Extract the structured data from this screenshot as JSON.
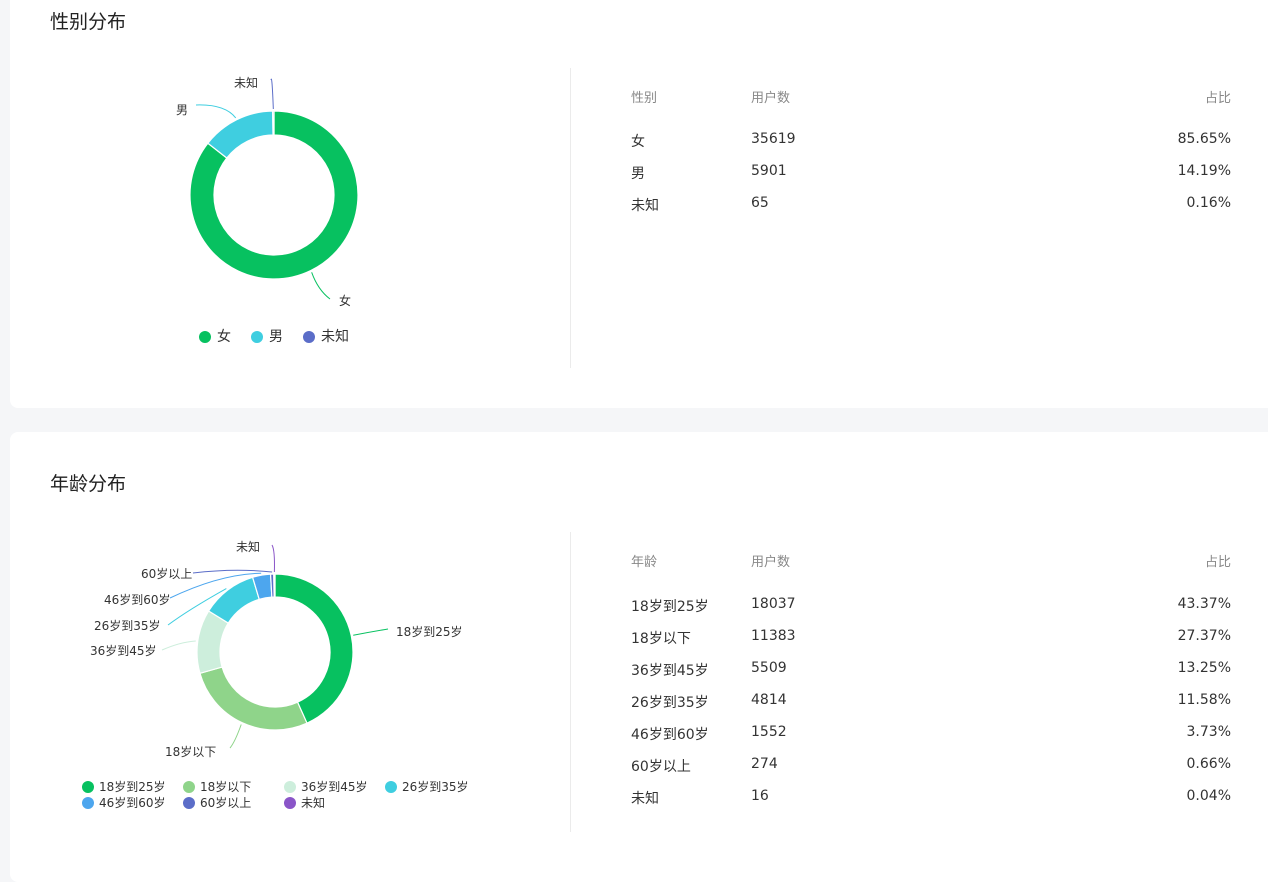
{
  "gender_section": {
    "title": "性别分布",
    "table": {
      "headers": [
        "性别",
        "用户数",
        "占比"
      ],
      "rows": [
        [
          "女",
          "35619",
          "85.65%"
        ],
        [
          "男",
          "5901",
          "14.19%"
        ],
        [
          "未知",
          "65",
          "0.16%"
        ]
      ]
    }
  },
  "age_section": {
    "title": "年龄分布",
    "table": {
      "headers": [
        "年龄",
        "用户数",
        "占比"
      ],
      "rows": [
        [
          "18岁到25岁",
          "18037",
          "43.37%"
        ],
        [
          "18岁以下",
          "11383",
          "27.37%"
        ],
        [
          "36岁到45岁",
          "5509",
          "13.25%"
        ],
        [
          "26岁到35岁",
          "4814",
          "11.58%"
        ],
        [
          "46岁到60岁",
          "1552",
          "3.73%"
        ],
        [
          "60岁以上",
          "274",
          "0.66%"
        ],
        [
          "未知",
          "16",
          "0.04%"
        ]
      ]
    }
  },
  "chart_data": [
    {
      "type": "pie",
      "variant": "donut",
      "title": "性别分布",
      "categories": [
        "女",
        "男",
        "未知"
      ],
      "values": [
        35619,
        5901,
        65
      ],
      "colors": [
        "#07c160",
        "#3fcee0",
        "#5b6dc8"
      ],
      "legend": "bottom"
    },
    {
      "type": "pie",
      "variant": "donut",
      "title": "年龄分布",
      "categories": [
        "18岁到25岁",
        "18岁以下",
        "36岁到45岁",
        "26岁到35岁",
        "46岁到60岁",
        "60岁以上",
        "未知"
      ],
      "values": [
        18037,
        11383,
        5509,
        4814,
        1552,
        274,
        16
      ],
      "colors": [
        "#07c160",
        "#8fd48a",
        "#cdeedc",
        "#3fcee0",
        "#4da6ee",
        "#5b6dc8",
        "#8a55c8"
      ],
      "legend": "bottom"
    }
  ]
}
